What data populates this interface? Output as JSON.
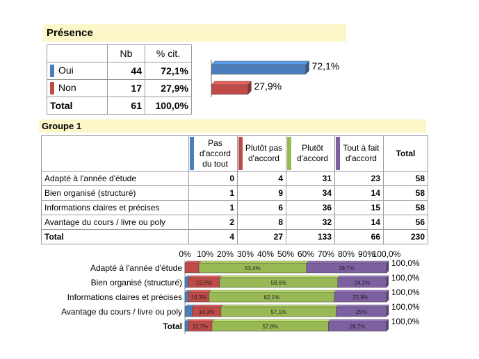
{
  "presence": {
    "title": "Présence",
    "headers": {
      "label": "",
      "nb": "Nb",
      "pct": "% cit."
    },
    "rows": [
      {
        "label": "Oui",
        "nb": "44",
        "pct": "72,1%",
        "color": "#4a7ebb"
      },
      {
        "label": "Non",
        "nb": "17",
        "pct": "27,9%",
        "color": "#be4b48"
      }
    ],
    "total": {
      "label": "Total",
      "nb": "61",
      "pct": "100,0%"
    }
  },
  "groupe": {
    "title": "Groupe 1",
    "headers": [
      {
        "label": "Pas d'accord du tout",
        "color": "#4a7ebb"
      },
      {
        "label": "Plutôt pas d'accord",
        "color": "#be4b48"
      },
      {
        "label": "Plutôt d'accord",
        "color": "#98b954"
      },
      {
        "label": "Tout à fait d'accord",
        "color": "#7d60a0"
      }
    ],
    "total_header": "Total",
    "rows": [
      {
        "label": "Adapté à l'année d'étude",
        "values": [
          "0",
          "4",
          "31",
          "23"
        ],
        "total": "58"
      },
      {
        "label": "Bien organisé (structuré)",
        "values": [
          "1",
          "9",
          "34",
          "14"
        ],
        "total": "58"
      },
      {
        "label": "Informations claires et précises",
        "values": [
          "1",
          "6",
          "36",
          "15"
        ],
        "total": "58"
      },
      {
        "label": "Avantage du cours / livre ou poly",
        "values": [
          "2",
          "8",
          "32",
          "14"
        ],
        "total": "56"
      }
    ],
    "total_row": {
      "label": "Total",
      "values": [
        "4",
        "27",
        "133",
        "66"
      ],
      "total": "230"
    }
  },
  "chart_data": [
    {
      "type": "bar",
      "orientation": "horizontal",
      "categories": [
        "Oui",
        "Non"
      ],
      "values": [
        72.1,
        27.9
      ],
      "value_labels": [
        "72,1%",
        "27,9%"
      ],
      "colors": [
        "#4a7ebb",
        "#be4b48"
      ]
    },
    {
      "type": "bar",
      "stacked": "percent",
      "orientation": "horizontal",
      "categories": [
        "Adapté à l'année d'étude",
        "Bien organisé (structuré)",
        "Informations claires et précises",
        "Avantage du cours / livre ou poly",
        "Total"
      ],
      "bold_categories": [
        "Total"
      ],
      "xticks": [
        "0%",
        "10%",
        "20%",
        "30%",
        "40%",
        "50%",
        "60%",
        "70%",
        "80%",
        "90%",
        "100,0%"
      ],
      "xlim": [
        0,
        100
      ],
      "series": [
        {
          "values": [
            0,
            1.7,
            1.7,
            3.6,
            1.7
          ],
          "color": "#4a7ebb",
          "labels": [
            "",
            "",
            "",
            "",
            ""
          ]
        },
        {
          "values": [
            6.9,
            15.5,
            10.3,
            14.3,
            11.7
          ],
          "color": "#be4b48",
          "labels": [
            "",
            "15,5%",
            "10,3%",
            "14,3%",
            "11,7%"
          ]
        },
        {
          "values": [
            53.4,
            58.6,
            62.1,
            57.1,
            57.8
          ],
          "color": "#98b954",
          "labels": [
            "53,4%",
            "58,6%",
            "62,1%",
            "57,1%",
            "57,8%"
          ]
        },
        {
          "values": [
            39.7,
            24.1,
            25.9,
            25,
            28.7
          ],
          "color": "#7d60a0",
          "labels": [
            "39,7%",
            "24,1%",
            "25,9%",
            "25%",
            "28,7%"
          ]
        }
      ],
      "total_labels": [
        "100,0%",
        "100,0%",
        "100,0%",
        "100,0%",
        "100,0%"
      ]
    }
  ]
}
